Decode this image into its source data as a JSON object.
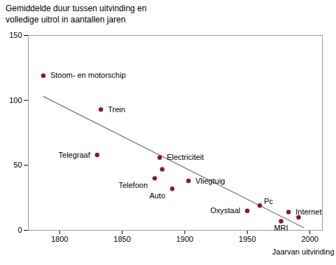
{
  "chart_data": {
    "type": "scatter",
    "title": "Gemiddelde duur tussen uitvinding en\nvolledige uitrol in aantallen jaren",
    "x_label": "Jaarvan uitvinding",
    "x": [
      1787,
      1833,
      1830,
      1880,
      1882,
      1876,
      1890,
      1903,
      1950,
      1960,
      1983,
      1977,
      1991
    ],
    "values": [
      119,
      93,
      58,
      56,
      47,
      40,
      32,
      38,
      15,
      19,
      14,
      7,
      10
    ],
    "labels": [
      "Stoom- en motorschip",
      "Trein",
      "Telegraaf",
      "Electriciteit",
      null,
      "Telefoon",
      "Auto",
      "Vliegtuig",
      "Oxystaal",
      "Pc",
      "Internet",
      "MRI",
      null
    ],
    "color": "#8b1a1a",
    "trendline": {
      "x": [
        1787,
        1995
      ],
      "values": [
        103,
        2
      ],
      "color": "#777777"
    },
    "xlim": [
      1775,
      2010
    ],
    "xticks": [
      1800,
      1850,
      1900,
      1950,
      2000
    ],
    "ylim": [
      0,
      150
    ],
    "yticks": [
      0,
      50,
      100,
      150
    ],
    "grid": false
  }
}
